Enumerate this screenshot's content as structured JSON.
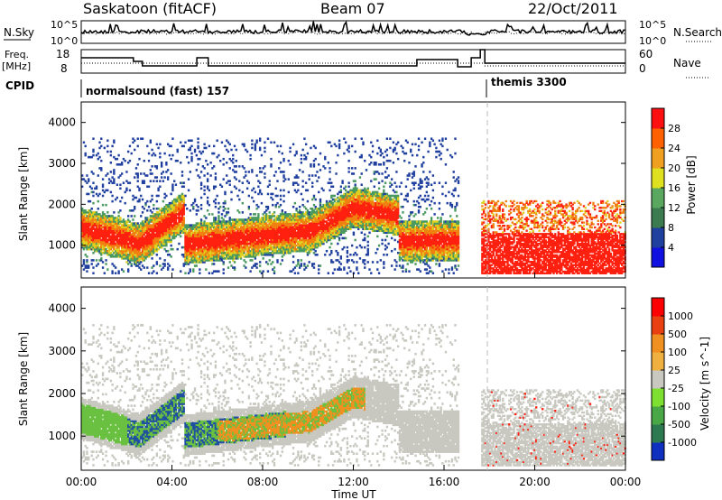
{
  "header": {
    "title": "Saskatoon (fitACF)",
    "beam": "Beam 07",
    "date": "22/Oct/2011"
  },
  "panels": {
    "nsky_label": "N.Sky",
    "nsearch_label": "N.Search",
    "freq_label_1": "Freq.",
    "freq_label_2": "[MHz]",
    "nave_label": "Nave",
    "cpid_label": "CPID",
    "nsky_ticks": [
      "10^5",
      "10^0"
    ],
    "nsearch_ticks": [
      "10^5",
      "10^0"
    ],
    "freq_ticks": [
      "18",
      "8"
    ],
    "nave_ticks": [
      "60",
      "0"
    ],
    "cpid_1": "normalsound (fast) 157",
    "cpid_2": "themis 3300"
  },
  "chart_data": [
    {
      "type": "heatmap",
      "name_shown": "",
      "ylabel": "Slant Range [km]",
      "xlabel": "",
      "y_ticks": [
        "1000",
        "2000",
        "3000",
        "4000"
      ],
      "ylim": [
        200,
        4500
      ],
      "colorbar_label": "Power [dB]",
      "colorbar_ticks": [
        "4",
        "8",
        "12",
        "16",
        "20",
        "24",
        "28"
      ],
      "colorbar_colors": [
        "#1010e0",
        "#2040a0",
        "#3c7a50",
        "#5aa860",
        "#dfe020",
        "#f0a020",
        "#ff6000",
        "#ff1010"
      ]
    },
    {
      "type": "heatmap",
      "ylabel": "Slant Range [km]",
      "xlabel": "Time UT",
      "y_ticks": [
        "1000",
        "2000",
        "3000",
        "4000"
      ],
      "ylim": [
        200,
        4500
      ],
      "x_ticks": [
        "00:00",
        "04:00",
        "08:00",
        "12:00",
        "16:00",
        "20:00",
        "00:00"
      ],
      "colorbar_label": "Velocity [m s^-1]",
      "colorbar_ticks": [
        "1000",
        "500",
        "100",
        "25",
        "-25",
        "-100",
        "-500",
        "-1000"
      ],
      "colorbar_colors": [
        "#1030c0",
        "#2e7a50",
        "#49a845",
        "#7ddf30",
        "#c8c8c0",
        "#f0b040",
        "#f09020",
        "#e84010",
        "#ff0000"
      ]
    }
  ],
  "colors": {
    "power_red": "#ff2010",
    "power_orange": "#f08010",
    "power_yellow": "#e0d020",
    "power_green": "#4a9a60",
    "power_blue": "#2040a0",
    "vel_grey": "#c8c8c0",
    "vel_green": "#6ac040",
    "vel_orange": "#f09020",
    "vel_blue": "#2050a0"
  }
}
